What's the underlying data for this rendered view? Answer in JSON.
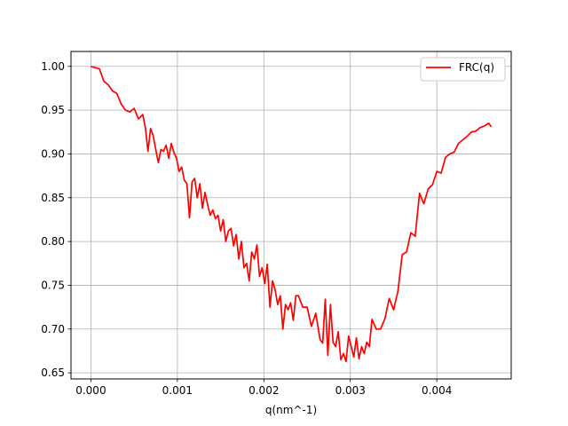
{
  "chart_data": {
    "type": "line",
    "title": "",
    "xlabel": "q(nm^-1)",
    "ylabel": "",
    "xlim": [
      -0.00023,
      0.00486
    ],
    "ylim": [
      0.643,
      1.017
    ],
    "xticks": [
      0.0,
      0.001,
      0.002,
      0.003,
      0.004
    ],
    "xtick_labels": [
      "0.000",
      "0.001",
      "0.002",
      "0.003",
      "0.004"
    ],
    "yticks": [
      0.65,
      0.7,
      0.75,
      0.8,
      0.85,
      0.9,
      0.95,
      1.0
    ],
    "ytick_labels": [
      "0.65",
      "0.70",
      "0.75",
      "0.80",
      "0.85",
      "0.90",
      "0.95",
      "1.00"
    ],
    "grid": true,
    "legend_position": "top-right",
    "series": [
      {
        "name": "FRC(q)",
        "color": "#ff0000",
        "x": [
          0.0,
          0.0001,
          0.00015,
          0.0002,
          0.00025,
          0.0003,
          0.00035,
          0.0004,
          0.00045,
          0.0005,
          0.00055,
          0.0006,
          0.00063,
          0.00066,
          0.00069,
          0.00072,
          0.00075,
          0.00078,
          0.00081,
          0.00084,
          0.00087,
          0.0009,
          0.00093,
          0.00096,
          0.00099,
          0.00102,
          0.00105,
          0.00108,
          0.00111,
          0.00114,
          0.00117,
          0.0012,
          0.00123,
          0.00126,
          0.00129,
          0.00132,
          0.00135,
          0.00138,
          0.00141,
          0.00144,
          0.00147,
          0.0015,
          0.00153,
          0.00156,
          0.00159,
          0.00162,
          0.00165,
          0.00168,
          0.00171,
          0.00174,
          0.00177,
          0.0018,
          0.00183,
          0.00186,
          0.00189,
          0.00192,
          0.00195,
          0.00198,
          0.00201,
          0.00204,
          0.00207,
          0.0021,
          0.00213,
          0.00216,
          0.00219,
          0.00222,
          0.00225,
          0.00228,
          0.00231,
          0.00234,
          0.00237,
          0.0024,
          0.00245,
          0.0025,
          0.00255,
          0.0026,
          0.00265,
          0.00268,
          0.00271,
          0.00274,
          0.00277,
          0.0028,
          0.00283,
          0.00286,
          0.00289,
          0.00292,
          0.00295,
          0.00298,
          0.00301,
          0.00304,
          0.00307,
          0.0031,
          0.00313,
          0.00316,
          0.00319,
          0.00322,
          0.00325,
          0.0033,
          0.00335,
          0.0034,
          0.00345,
          0.0035,
          0.00355,
          0.0036,
          0.00365,
          0.0037,
          0.00375,
          0.0038,
          0.00385,
          0.0039,
          0.00395,
          0.004,
          0.00405,
          0.0041,
          0.00415,
          0.0042,
          0.00425,
          0.0043,
          0.00435,
          0.0044,
          0.00445,
          0.0045,
          0.00455,
          0.0046,
          0.00463
        ],
        "y": [
          1.0,
          0.997,
          0.983,
          0.979,
          0.972,
          0.969,
          0.957,
          0.95,
          0.948,
          0.952,
          0.94,
          0.945,
          0.93,
          0.903,
          0.929,
          0.921,
          0.905,
          0.89,
          0.905,
          0.903,
          0.91,
          0.895,
          0.912,
          0.902,
          0.895,
          0.88,
          0.885,
          0.87,
          0.866,
          0.827,
          0.868,
          0.872,
          0.85,
          0.866,
          0.838,
          0.856,
          0.842,
          0.83,
          0.836,
          0.826,
          0.83,
          0.812,
          0.825,
          0.8,
          0.812,
          0.815,
          0.795,
          0.808,
          0.78,
          0.8,
          0.77,
          0.775,
          0.755,
          0.788,
          0.78,
          0.796,
          0.76,
          0.77,
          0.752,
          0.774,
          0.725,
          0.755,
          0.745,
          0.728,
          0.738,
          0.7,
          0.728,
          0.722,
          0.73,
          0.71,
          0.738,
          0.738,
          0.725,
          0.725,
          0.703,
          0.718,
          0.688,
          0.684,
          0.734,
          0.67,
          0.728,
          0.685,
          0.68,
          0.697,
          0.665,
          0.672,
          0.663,
          0.692,
          0.68,
          0.668,
          0.69,
          0.666,
          0.68,
          0.672,
          0.685,
          0.68,
          0.711,
          0.7,
          0.7,
          0.712,
          0.735,
          0.722,
          0.743,
          0.785,
          0.788,
          0.81,
          0.806,
          0.855,
          0.843,
          0.86,
          0.865,
          0.88,
          0.878,
          0.896,
          0.9,
          0.902,
          0.912,
          0.916,
          0.92,
          0.925,
          0.926,
          0.93,
          0.932,
          0.935,
          0.931
        ]
      }
    ]
  }
}
